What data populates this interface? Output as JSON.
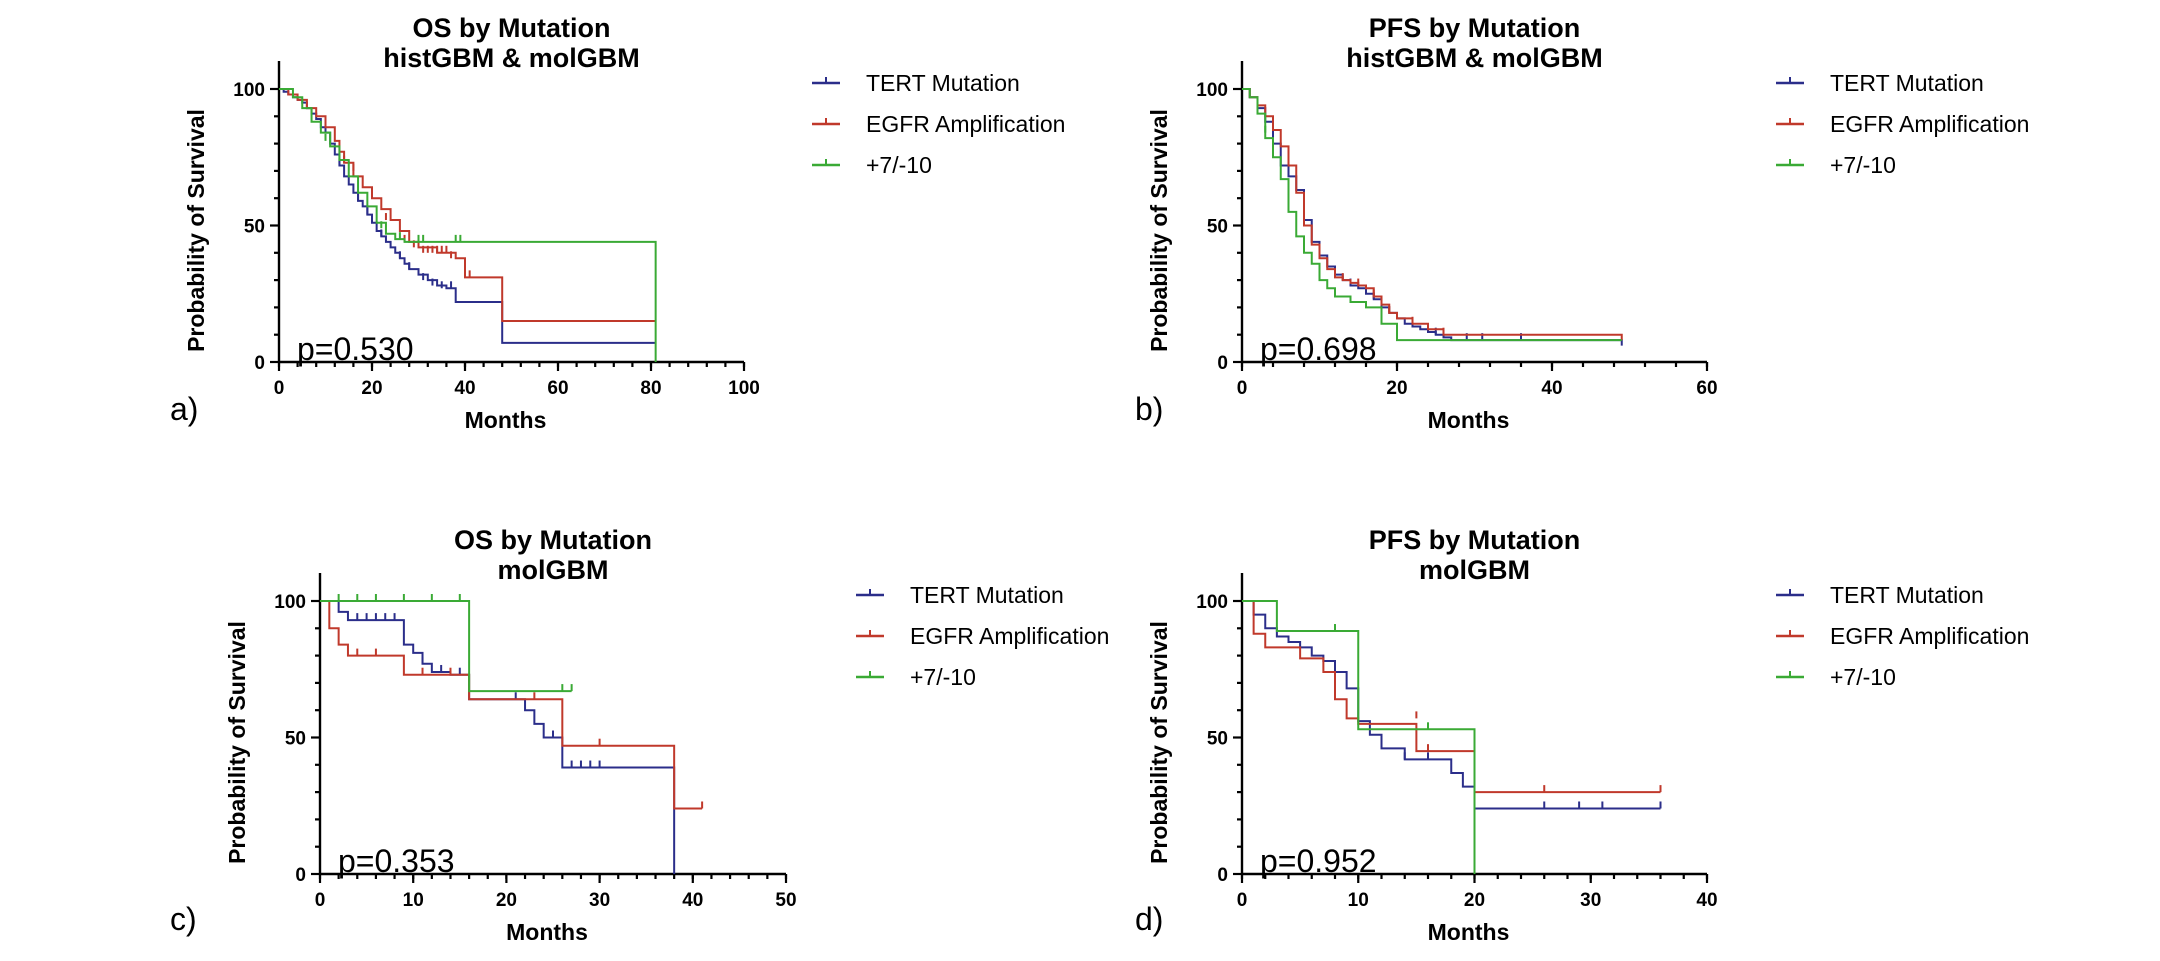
{
  "figure_top_text": "...",
  "colors": {
    "tert": "#2b2e8a",
    "egfr": "#c0392b",
    "chr": "#3aaa35"
  },
  "chart_data": [
    {
      "id": "a",
      "type": "line",
      "panel_letter": "a)",
      "title_line1": "OS by Mutation",
      "title_line2": "histGBM & molGBM",
      "xlabel": "Months",
      "ylabel": "Probability of Survival",
      "xlim": [
        0,
        100
      ],
      "ylim": [
        0,
        100
      ],
      "xticks": [
        0,
        20,
        40,
        60,
        80,
        100
      ],
      "yticks": [
        0,
        50,
        100
      ],
      "p_value": "p=0.530",
      "legend_position": "top-right",
      "series": [
        {
          "name": "TERT Mutation",
          "color": "#2b2e8a",
          "x": [
            0,
            1,
            2,
            3,
            4,
            5,
            6,
            7,
            8,
            9,
            10,
            11,
            12,
            13,
            14,
            15,
            16,
            17,
            18,
            19,
            20,
            21,
            22,
            23,
            24,
            25,
            26,
            27,
            28,
            30,
            32,
            34,
            36,
            38,
            48,
            81
          ],
          "y": [
            100,
            99,
            98,
            97,
            96,
            95,
            93,
            91,
            89,
            86,
            84,
            80,
            76,
            72,
            68,
            65,
            62,
            59,
            57,
            54,
            51,
            48,
            46,
            44,
            42,
            40,
            38,
            36,
            34,
            32,
            30,
            28,
            27,
            22,
            7,
            7
          ],
          "censor_x": [
            13,
            17,
            19,
            22,
            26,
            28,
            31,
            33,
            35,
            37
          ],
          "censor_y": [
            72,
            59,
            54,
            46,
            38,
            34,
            30,
            28,
            27,
            27
          ]
        },
        {
          "name": "EGFR Amplification",
          "color": "#c0392b",
          "x": [
            0,
            2,
            4,
            6,
            8,
            10,
            12,
            13,
            14,
            16,
            18,
            20,
            22,
            24,
            26,
            28,
            30,
            34,
            38,
            40,
            48,
            81
          ],
          "y": [
            100,
            98,
            96,
            93,
            90,
            86,
            81,
            77,
            73,
            68,
            64,
            60,
            56,
            52,
            48,
            44,
            42,
            40,
            38,
            31,
            15,
            15
          ],
          "censor_x": [
            14,
            16,
            23,
            27,
            29,
            30,
            31,
            32,
            33,
            34,
            35,
            36,
            37,
            41
          ],
          "censor_y": [
            73,
            70,
            52,
            44,
            42,
            42,
            40,
            40,
            40,
            40,
            40,
            40,
            38,
            31
          ]
        },
        {
          "name": "+7/-10",
          "color": "#3aaa35",
          "x": [
            0,
            3,
            5,
            7,
            9,
            11,
            13,
            15,
            17,
            19,
            21,
            23,
            25,
            27,
            81
          ],
          "y": [
            100,
            97,
            93,
            88,
            84,
            79,
            74,
            68,
            62,
            57,
            51,
            47,
            45,
            44,
            0
          ],
          "censor_x": [
            10,
            22,
            26,
            30,
            31,
            38,
            39
          ],
          "censor_y": [
            81,
            49,
            45,
            44,
            44,
            44,
            44
          ]
        }
      ]
    },
    {
      "id": "b",
      "type": "line",
      "panel_letter": "b)",
      "title_line1": "PFS by Mutation",
      "title_line2": "histGBM & molGBM",
      "xlabel": "Months",
      "ylabel": "Probability of Survival",
      "xlim": [
        0,
        60
      ],
      "ylim": [
        0,
        100
      ],
      "xticks": [
        0,
        20,
        40,
        60
      ],
      "yticks": [
        0,
        50,
        100
      ],
      "p_value": "p=0.698",
      "legend_position": "top-right",
      "series": [
        {
          "name": "TERT Mutation",
          "color": "#2b2e8a",
          "x": [
            0,
            1,
            2,
            3,
            4,
            5,
            6,
            7,
            8,
            9,
            10,
            11,
            12,
            13,
            14,
            15,
            16,
            17,
            18,
            19,
            20,
            21,
            22,
            23,
            24,
            25,
            26,
            27,
            49
          ],
          "y": [
            100,
            97,
            93,
            88,
            80,
            72,
            68,
            63,
            52,
            44,
            39,
            35,
            32,
            30,
            28,
            27,
            25,
            23,
            20,
            18,
            16,
            14,
            13,
            12,
            11,
            10,
            9,
            8,
            6
          ],
          "censor_x": [
            14,
            16,
            17,
            18,
            22,
            25,
            26,
            29,
            31,
            36
          ],
          "censor_y": [
            28,
            25,
            23,
            20,
            13,
            10,
            9,
            8,
            8,
            8
          ]
        },
        {
          "name": "EGFR Amplification",
          "color": "#c0392b",
          "x": [
            0,
            1,
            2,
            3,
            4,
            5,
            6,
            7,
            8,
            9,
            10,
            11,
            12,
            13,
            14,
            15,
            16,
            17,
            18,
            19,
            20,
            22,
            24,
            26,
            49
          ],
          "y": [
            100,
            97,
            94,
            90,
            85,
            79,
            72,
            62,
            50,
            43,
            38,
            34,
            31,
            30,
            29,
            28,
            27,
            24,
            21,
            18,
            16,
            14,
            12,
            10,
            8
          ],
          "censor_x": [
            13,
            15,
            17,
            19,
            22,
            26
          ],
          "censor_y": [
            30,
            28,
            24,
            18,
            14,
            10
          ]
        },
        {
          "name": "+7/-10",
          "color": "#3aaa35",
          "x": [
            0,
            1,
            2,
            3,
            4,
            5,
            6,
            7,
            8,
            9,
            10,
            11,
            12,
            14,
            16,
            18,
            20,
            49
          ],
          "y": [
            100,
            97,
            91,
            82,
            75,
            67,
            55,
            46,
            40,
            36,
            30,
            27,
            24,
            22,
            20,
            14,
            8,
            8
          ],
          "censor_x": [
            3
          ],
          "censor_y": [
            84
          ]
        }
      ]
    },
    {
      "id": "c",
      "type": "line",
      "panel_letter": "c)",
      "title_line1": "OS by Mutation",
      "title_line2": "molGBM",
      "xlabel": "Months",
      "ylabel": "Probability of Survival",
      "xlim": [
        0,
        50
      ],
      "ylim": [
        0,
        100
      ],
      "xticks": [
        0,
        10,
        20,
        30,
        40,
        50
      ],
      "yticks": [
        0,
        50,
        100
      ],
      "p_value": "p=0.353",
      "legend_position": "top-right",
      "series": [
        {
          "name": "TERT Mutation",
          "color": "#2b2e8a",
          "x": [
            0,
            2,
            3,
            9,
            10,
            11,
            12,
            13,
            14,
            16,
            22,
            23,
            24,
            26,
            38
          ],
          "y": [
            100,
            96,
            93,
            84,
            81,
            77,
            74,
            74,
            73,
            64,
            60,
            55,
            50,
            39,
            0
          ],
          "censor_x": [
            4,
            5,
            6,
            7,
            8,
            11,
            13,
            15,
            21,
            25,
            27,
            28,
            29,
            30
          ],
          "censor_y": [
            93,
            93,
            93,
            93,
            93,
            77,
            74,
            73,
            64,
            50,
            39,
            39,
            39,
            39
          ]
        },
        {
          "name": "EGFR Amplification",
          "color": "#c0392b",
          "x": [
            0,
            1,
            2,
            3,
            9,
            16,
            26,
            38,
            41
          ],
          "y": [
            100,
            90,
            84,
            80,
            73,
            64,
            47,
            24,
            24
          ],
          "censor_x": [
            4,
            6,
            11,
            14,
            23,
            30,
            41
          ],
          "censor_y": [
            80,
            80,
            73,
            73,
            64,
            47,
            24
          ]
        },
        {
          "name": "+7/-10",
          "color": "#3aaa35",
          "x": [
            0,
            16,
            27
          ],
          "y": [
            100,
            67,
            67
          ],
          "censor_x": [
            2,
            4,
            6,
            9,
            12,
            15,
            26,
            27
          ],
          "censor_y": [
            100,
            100,
            100,
            100,
            100,
            100,
            67,
            67
          ]
        }
      ]
    },
    {
      "id": "d",
      "type": "line",
      "panel_letter": "d)",
      "title_line1": "PFS by Mutation",
      "title_line2": "molGBM",
      "xlabel": "Months",
      "ylabel": "Probability of Survival",
      "xlim": [
        0,
        40
      ],
      "ylim": [
        0,
        100
      ],
      "xticks": [
        0,
        10,
        20,
        30,
        40
      ],
      "yticks": [
        0,
        50,
        100
      ],
      "p_value": "p=0.952",
      "legend_position": "top-right",
      "series": [
        {
          "name": "TERT Mutation",
          "color": "#2b2e8a",
          "x": [
            0,
            1,
            2,
            3,
            4,
            5,
            6,
            7,
            8,
            9,
            10,
            11,
            12,
            14,
            16,
            18,
            19,
            20,
            36
          ],
          "y": [
            100,
            95,
            90,
            87,
            85,
            83,
            80,
            78,
            74,
            68,
            56,
            51,
            46,
            42,
            42,
            37,
            32,
            24,
            24
          ],
          "censor_x": [
            14,
            16,
            26,
            29,
            31,
            36
          ],
          "censor_y": [
            42,
            42,
            24,
            24,
            24,
            24
          ]
        },
        {
          "name": "EGFR Amplification",
          "color": "#c0392b",
          "x": [
            0,
            1,
            2,
            5,
            7,
            8,
            9,
            10,
            13,
            15,
            20,
            36
          ],
          "y": [
            100,
            88,
            83,
            79,
            74,
            64,
            57,
            55,
            55,
            45,
            30,
            30
          ],
          "censor_x": [
            15,
            16,
            26,
            36
          ],
          "censor_y": [
            57,
            45,
            30,
            30
          ]
        },
        {
          "name": "+7/-10",
          "color": "#3aaa35",
          "x": [
            0,
            3,
            10,
            20
          ],
          "y": [
            100,
            89,
            53,
            0
          ],
          "censor_x": [
            8,
            16
          ],
          "censor_y": [
            89,
            53
          ]
        }
      ]
    }
  ]
}
